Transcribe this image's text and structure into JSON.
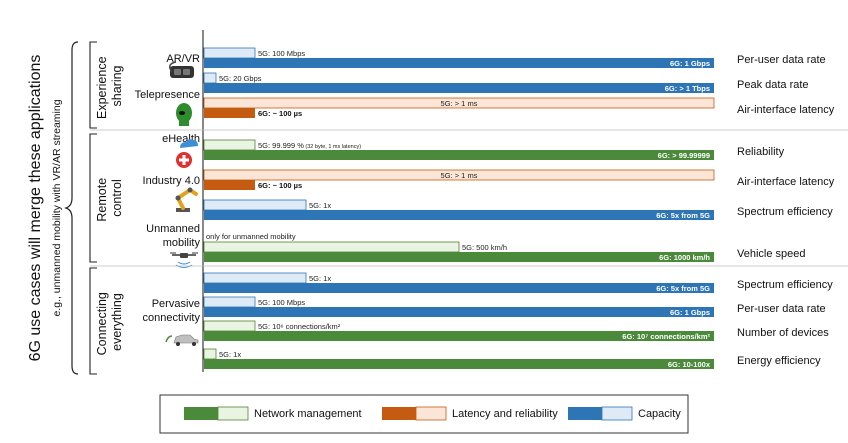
{
  "colors": {
    "green": "#4a8a3a",
    "green_light": "#e9f4e2",
    "orange": "#c55a11",
    "orange_light": "#fbe5d6",
    "blue": "#2e75b6",
    "blue_light": "#deebf7",
    "outline_green": "#548235",
    "outline_orange": "#c55a11",
    "outline_blue": "#2e75b6"
  },
  "headline": "6G use cases will merge these applications",
  "subheadline": "e.g., unmanned mobility with VR/AR streaming",
  "groups": [
    {
      "label_lines": [
        "Experience",
        "sharing"
      ]
    },
    {
      "label_lines": [
        "Remote",
        "control"
      ]
    },
    {
      "label_lines": [
        "Connecting",
        "everything"
      ]
    }
  ],
  "apps": [
    {
      "name": "AR/VR",
      "icon": "vr-headset-icon"
    },
    {
      "name": "Telepresence",
      "icon": "hologram-head-icon"
    },
    {
      "name": "eHealth",
      "icon": "medical-cross-icon"
    },
    {
      "name": "Industry 4.0",
      "icon": "robot-arm-icon"
    },
    {
      "name": "Unmanned",
      "icon": "drone-icon"
    },
    {
      "name": "mobility"
    },
    {
      "name": "Pervasive"
    },
    {
      "name": "connectivity",
      "icon": "car-icon"
    }
  ],
  "rows": [
    {
      "metric": "Per-user data rate",
      "kind": "capacity",
      "v5g": "5G: 100 Mbps",
      "v6g": "6G: 1 Gbps",
      "ratio": 0.1
    },
    {
      "metric": "Peak data rate",
      "kind": "capacity",
      "v5g": "5G: 20 Gbps",
      "v6g": "6G: > 1 Tbps",
      "ratio": 0.02
    },
    {
      "metric": "Air-interface latency",
      "kind": "latency",
      "v5g": "5G: > 1 ms",
      "v6g": "6G: ~ 100 µs",
      "ratio": 0.1
    },
    {
      "metric": "Reliability",
      "kind": "network",
      "v5g": "5G: 99.999 %",
      "v5g_note": "(32 byte, 1 ms latency)",
      "v6g": "6G: > 99.99999",
      "ratio": 0.1
    },
    {
      "metric": "Air-interface latency",
      "kind": "latency",
      "v5g": "5G: > 1 ms",
      "v6g": "6G: ~ 100 µs",
      "ratio": 0.1
    },
    {
      "metric": "Spectrum efficiency",
      "kind": "capacity",
      "v5g": "5G: 1x",
      "v6g": "6G: 5x from 5G",
      "ratio": 0.2
    },
    {
      "metric": "Vehicle speed",
      "kind": "network",
      "v5g": "5G: 500 km/h",
      "v5g_note": "only for unmanned mobility",
      "v6g": "6G: 1000 km/h",
      "ratio": 0.5
    },
    {
      "metric": "Spectrum efficiency",
      "kind": "capacity",
      "v5g": "5G: 1x",
      "v6g": "6G: 5x from 5G",
      "ratio": 0.2
    },
    {
      "metric": "Per-user data rate",
      "kind": "capacity",
      "v5g": "5G: 100 Mbps",
      "v6g": "6G: 1 Gbps",
      "ratio": 0.1
    },
    {
      "metric": "Number of devices",
      "kind": "network",
      "v5g": "5G: 10⁶ connections/km²",
      "v6g": "6G: 10⁷ connections/km²",
      "ratio": 0.1
    },
    {
      "metric": "Energy efficiency",
      "kind": "network",
      "v5g": "5G: 1x",
      "v6g": "6G: 10-100x",
      "ratio": 0.02
    }
  ],
  "legend": [
    {
      "kind": "network",
      "label": "Network management"
    },
    {
      "kind": "latency",
      "label": "Latency and reliability"
    },
    {
      "kind": "capacity",
      "label": "Capacity"
    }
  ]
}
